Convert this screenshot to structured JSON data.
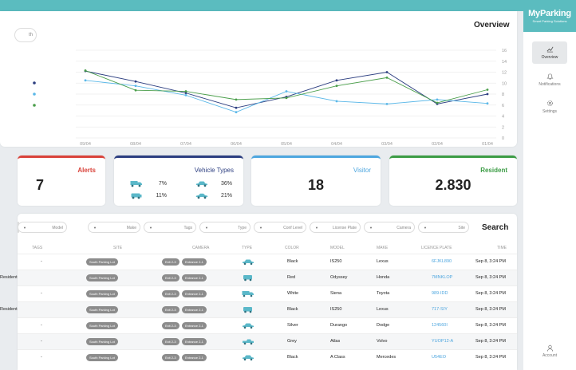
{
  "brand": {
    "name": "MyParking",
    "tagline": "Smart Parking Solutions",
    "color": "#5bbcbf"
  },
  "nav": [
    {
      "label": "Overview",
      "icon": "chart-line-icon",
      "active": true
    },
    {
      "label": "Notifications",
      "icon": "bell-icon",
      "active": false
    },
    {
      "label": "Settings",
      "icon": "gear-icon",
      "active": false
    }
  ],
  "account_label": "Account",
  "overview": {
    "title": "Overview",
    "period_fragment": "th"
  },
  "chart_data": {
    "type": "line",
    "x": [
      "09/04",
      "08/04",
      "07/04",
      "06/04",
      "05/04",
      "04/04",
      "03/04",
      "02/04",
      "01/04"
    ],
    "ylim": [
      0,
      16
    ],
    "yticks": [
      0,
      2,
      4,
      6,
      8,
      10,
      12,
      14,
      16
    ],
    "grid": true,
    "series": [
      {
        "color": "#2c3e80",
        "values": [
          12.2,
          10.3,
          8.2,
          5.5,
          7.5,
          10.5,
          12,
          6.2,
          8
        ]
      },
      {
        "color": "#5bb8e8",
        "values": [
          10.5,
          9.5,
          7.8,
          4.7,
          8.5,
          6.7,
          6.2,
          7,
          6.3
        ]
      },
      {
        "color": "#4a9e4a",
        "values": [
          12.3,
          8.7,
          8.5,
          7,
          7.3,
          9.5,
          11,
          6.4,
          8.8
        ]
      }
    ]
  },
  "stats": {
    "alerts": {
      "label": "Alerts",
      "value": "7"
    },
    "vehicle_types": {
      "label": "Vehicle Types",
      "items": [
        {
          "icon": "truck-icon",
          "pct": "7%"
        },
        {
          "icon": "car-icon",
          "pct": "36%"
        },
        {
          "icon": "suv-icon",
          "pct": "11%"
        },
        {
          "icon": "sedan-icon",
          "pct": "21%"
        }
      ]
    },
    "visitor": {
      "label": "Visitor",
      "value": "18"
    },
    "resident": {
      "label": "Resident",
      "value": "2.830"
    }
  },
  "filters": [
    "Model",
    "Make",
    "Tags",
    "Type",
    "Conf Level",
    "License Plate",
    "Camera",
    "Site"
  ],
  "search_label": "Search",
  "table": {
    "headers": [
      "TAGS",
      "SITE",
      "CAMERA",
      "TYPE",
      "COLOR",
      "MODEL",
      "MAKE",
      "LICENCE PLATE",
      "TIME"
    ],
    "rows": [
      {
        "tag": "-",
        "site": "South Parking Lot",
        "cam1": "Exit 2-3",
        "cam2": "Entrance 2-1",
        "type": "car",
        "color": "Black",
        "model": "IS250",
        "make": "Lexus",
        "plate": "6FJKL890",
        "time": "Sep 8, 3:24 PM"
      },
      {
        "tag": "Resident",
        "site": "South Parking Lot",
        "cam1": "Exit 2-3",
        "cam2": "Entrance 2-1",
        "type": "jeep",
        "color": "Red",
        "model": "Odyssey",
        "make": "Honda",
        "plate": "7MNKLOP",
        "time": "Sep 8, 3:24 PM"
      },
      {
        "tag": "-",
        "site": "South Parking Lot",
        "cam1": "Exit 2-3",
        "cam2": "Entrance 2-1",
        "type": "truck",
        "color": "White",
        "model": "Siena",
        "make": "Toyota",
        "plate": "989-IDD",
        "time": "Sep 8, 3:24 PM"
      },
      {
        "tag": "Resident",
        "site": "South Parking Lot",
        "cam1": "Exit 2-3",
        "cam2": "Entrance 2-1",
        "type": "jeep",
        "color": "Black",
        "model": "IS250",
        "make": "Lexus",
        "plate": "717-SIY",
        "time": "Sep 8, 3:24 PM"
      },
      {
        "tag": "-",
        "site": "South Parking Lot",
        "cam1": "Exit 2-3",
        "cam2": "Entrance 2-1",
        "type": "car",
        "color": "Silver",
        "model": "Durango",
        "make": "Dodge",
        "plate": "124560I",
        "time": "Sep 8, 3:24 PM"
      },
      {
        "tag": "-",
        "site": "South Parking Lot",
        "cam1": "Exit 2-3",
        "cam2": "Entrance 2-1",
        "type": "pickup",
        "color": "Grey",
        "model": "Atlas",
        "make": "Volvo",
        "plate": "YUOP12-A",
        "time": "Sep 8, 3:24 PM"
      },
      {
        "tag": "-",
        "site": "South Parking Lot",
        "cam1": "Exit 2-3",
        "cam2": "Entrance 2-1",
        "type": "car",
        "color": "Black",
        "model": "A Class",
        "make": "Mercedes",
        "plate": "U54EO",
        "time": "Sep 8, 3:24 PM"
      }
    ]
  }
}
